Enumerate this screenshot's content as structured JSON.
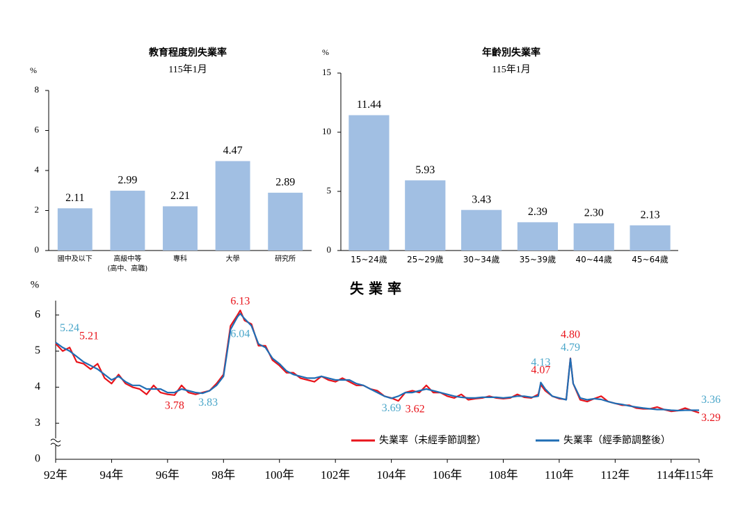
{
  "chart_data": [
    {
      "type": "bar",
      "title": "教育程度別失業率",
      "subtitle": "115年1月",
      "y_unit": "%",
      "categories": [
        "國中及以下",
        "高級中等\n(高中、高職)",
        "專科",
        "大學",
        "研究所"
      ],
      "values": [
        2.11,
        2.99,
        2.21,
        4.47,
        2.89
      ],
      "color": "#a1bfe3",
      "ylim": [
        0,
        8
      ],
      "yticks": [
        0,
        2,
        4,
        6,
        8
      ]
    },
    {
      "type": "bar",
      "title": "年齡別失業率",
      "subtitle": "115年1月",
      "y_unit": "%",
      "categories": [
        "15~24歲",
        "25~29歲",
        "30~34歲",
        "35~39歲",
        "40~44歲",
        "45~64歲"
      ],
      "values": [
        11.44,
        5.93,
        3.43,
        2.39,
        2.3,
        2.13
      ],
      "value_labels": [
        "11.44",
        "5.93",
        "3.43",
        "2.39",
        "2.30",
        "2.13"
      ],
      "color": "#a1bfe3",
      "ylim": [
        0,
        15
      ],
      "yticks": [
        0,
        5,
        10,
        15
      ]
    },
    {
      "type": "line",
      "title": "失 業 率",
      "y_unit": "%",
      "axis_break": true,
      "broken_axis_origin": 0,
      "ylim": [
        2,
        6.4
      ],
      "yticks": [
        3,
        4,
        5,
        6
      ],
      "xlim": [
        92,
        115
      ],
      "xticks": [
        {
          "value": 92,
          "label": "92年"
        },
        {
          "value": 94,
          "label": "94年"
        },
        {
          "value": 96,
          "label": "96年"
        },
        {
          "value": 98,
          "label": "98年"
        },
        {
          "value": 100,
          "label": "100年"
        },
        {
          "value": 102,
          "label": "102年"
        },
        {
          "value": 104,
          "label": "104年"
        },
        {
          "value": 106,
          "label": "106年"
        },
        {
          "value": 108,
          "label": "108年"
        },
        {
          "value": 110,
          "label": "110年"
        },
        {
          "value": 112,
          "label": "112年"
        },
        {
          "value": 114,
          "label": "114年"
        },
        {
          "value": 115,
          "label": "115年"
        }
      ],
      "x": [
        92,
        92.25,
        92.5,
        92.75,
        93,
        93.25,
        93.5,
        93.75,
        94,
        94.25,
        94.5,
        94.75,
        95,
        95.25,
        95.5,
        95.75,
        96,
        96.25,
        96.5,
        96.75,
        97,
        97.25,
        97.5,
        97.75,
        98,
        98.25,
        98.5,
        98.6,
        98.75,
        99,
        99.25,
        99.5,
        99.75,
        100,
        100.25,
        100.5,
        100.75,
        101,
        101.25,
        101.5,
        101.75,
        102,
        102.25,
        102.5,
        102.75,
        103,
        103.25,
        103.5,
        103.75,
        104,
        104.25,
        104.5,
        104.75,
        105,
        105.25,
        105.5,
        105.75,
        106,
        106.25,
        106.5,
        106.75,
        107,
        107.25,
        107.5,
        107.75,
        108,
        108.25,
        108.5,
        108.75,
        109,
        109.25,
        109.34,
        109.5,
        109.75,
        110,
        110.25,
        110.4,
        110.5,
        110.75,
        111,
        111.25,
        111.5,
        111.75,
        112,
        112.25,
        112.5,
        112.75,
        113,
        113.25,
        113.5,
        113.75,
        114,
        114.25,
        114.5,
        114.75,
        115
      ],
      "series": [
        {
          "name": "失業率（未經季節調整）",
          "color": "#e8141b",
          "label_color": "#e8141b",
          "values": [
            5.21,
            5.0,
            5.1,
            4.7,
            4.65,
            4.5,
            4.65,
            4.25,
            4.1,
            4.35,
            4.1,
            4.0,
            3.95,
            3.8,
            4.05,
            3.85,
            3.8,
            3.78,
            4.05,
            3.85,
            3.8,
            3.85,
            3.9,
            4.1,
            4.35,
            5.7,
            6.0,
            6.13,
            5.85,
            5.75,
            5.15,
            5.15,
            4.75,
            4.6,
            4.4,
            4.4,
            4.25,
            4.2,
            4.15,
            4.3,
            4.2,
            4.15,
            4.25,
            4.15,
            4.05,
            4.05,
            3.95,
            3.9,
            3.75,
            3.7,
            3.62,
            3.85,
            3.9,
            3.85,
            4.05,
            3.85,
            3.85,
            3.75,
            3.7,
            3.8,
            3.65,
            3.68,
            3.7,
            3.75,
            3.7,
            3.68,
            3.7,
            3.8,
            3.72,
            3.7,
            3.8,
            4.07,
            3.9,
            3.75,
            3.68,
            3.66,
            4.8,
            4.1,
            3.65,
            3.6,
            3.68,
            3.75,
            3.6,
            3.55,
            3.5,
            3.5,
            3.42,
            3.4,
            3.4,
            3.45,
            3.38,
            3.33,
            3.35,
            3.42,
            3.35,
            3.29
          ],
          "value_labels": [
            "5.21",
            null,
            null,
            null,
            null,
            null,
            null,
            null,
            null,
            null,
            null,
            null,
            null,
            null,
            null,
            null,
            null,
            "3.78",
            null,
            null,
            null,
            null,
            null,
            null,
            null,
            null,
            null,
            "6.13",
            null,
            null,
            null,
            null,
            null,
            null,
            null,
            null,
            null,
            null,
            null,
            null,
            null,
            null,
            null,
            null,
            null,
            null,
            null,
            null,
            null,
            null,
            "3.62",
            null,
            null,
            null,
            null,
            null,
            null,
            null,
            null,
            null,
            null,
            null,
            null,
            null,
            null,
            null,
            null,
            null,
            null,
            null,
            null,
            "4.07",
            null,
            null,
            null,
            null,
            "4.80",
            null,
            null,
            null,
            null,
            null,
            null,
            null,
            null,
            null,
            null,
            null,
            null,
            null,
            null,
            null,
            null,
            null,
            null,
            "3.29"
          ]
        },
        {
          "name": "失業率（經季節調整後）",
          "color": "#1f6db4",
          "label_color": "#4aa6c9",
          "values": [
            5.24,
            5.1,
            5.0,
            4.85,
            4.7,
            4.6,
            4.5,
            4.35,
            4.2,
            4.3,
            4.15,
            4.05,
            4.05,
            3.95,
            3.95,
            3.95,
            3.85,
            3.85,
            3.95,
            3.9,
            3.85,
            3.83,
            3.9,
            4.05,
            4.3,
            5.6,
            5.95,
            6.04,
            5.9,
            5.7,
            5.2,
            5.1,
            4.8,
            4.65,
            4.45,
            4.35,
            4.3,
            4.25,
            4.25,
            4.3,
            4.25,
            4.2,
            4.2,
            4.2,
            4.1,
            4.05,
            3.95,
            3.85,
            3.75,
            3.69,
            3.75,
            3.85,
            3.85,
            3.9,
            3.95,
            3.9,
            3.85,
            3.8,
            3.75,
            3.72,
            3.7,
            3.7,
            3.72,
            3.72,
            3.72,
            3.7,
            3.72,
            3.75,
            3.75,
            3.72,
            3.75,
            4.13,
            3.95,
            3.75,
            3.7,
            3.65,
            4.79,
            4.1,
            3.7,
            3.65,
            3.68,
            3.66,
            3.6,
            3.55,
            3.52,
            3.48,
            3.45,
            3.42,
            3.4,
            3.38,
            3.38,
            3.36,
            3.35,
            3.36,
            3.36,
            3.36
          ],
          "value_labels": [
            "5.24",
            null,
            null,
            null,
            null,
            null,
            null,
            null,
            null,
            null,
            null,
            null,
            null,
            null,
            null,
            null,
            null,
            null,
            null,
            null,
            null,
            "3.83",
            null,
            null,
            null,
            null,
            null,
            "6.04",
            null,
            null,
            null,
            null,
            null,
            null,
            null,
            null,
            null,
            null,
            null,
            null,
            null,
            null,
            null,
            null,
            null,
            null,
            null,
            null,
            null,
            "3.69",
            null,
            null,
            null,
            null,
            null,
            null,
            null,
            null,
            null,
            null,
            null,
            null,
            null,
            null,
            null,
            null,
            null,
            null,
            null,
            null,
            null,
            "4.13",
            null,
            null,
            null,
            null,
            "4.79",
            null,
            null,
            null,
            null,
            null,
            null,
            null,
            null,
            null,
            null,
            null,
            null,
            null,
            null,
            null,
            null,
            null,
            null,
            "3.36"
          ]
        }
      ]
    }
  ]
}
